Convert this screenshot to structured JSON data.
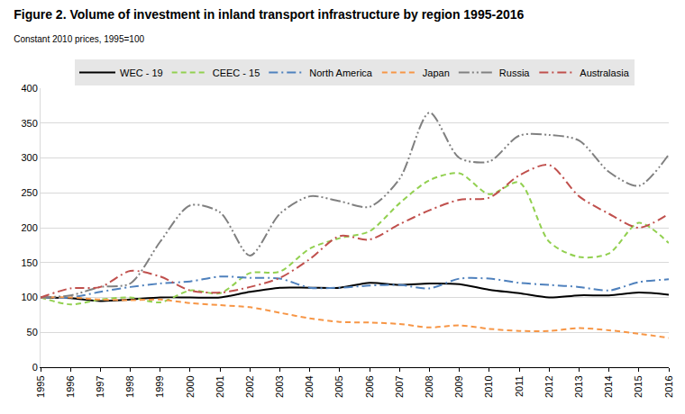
{
  "chart_data": {
    "type": "line",
    "title": "Figure 2. Volume of investment in inland transport infrastructure by region 1995-2016",
    "subtitle": "Constant 2010 prices, 1995=100",
    "categories": [
      "1995",
      "1996",
      "1997",
      "1998",
      "1999",
      "2000",
      "2001",
      "2002",
      "2003",
      "2004",
      "2005",
      "2006",
      "2007",
      "2008",
      "2009",
      "2010",
      "2011",
      "2012",
      "2013",
      "2014",
      "2015",
      "2016"
    ],
    "series": [
      {
        "name": "WEC - 19",
        "color": "#000000",
        "line_style": "solid",
        "values": [
          100,
          99,
          95,
          97,
          100,
          100,
          100,
          108,
          114,
          114,
          114,
          121,
          118,
          120,
          119,
          111,
          106,
          100,
          103,
          103,
          107,
          104
        ]
      },
      {
        "name": "CEEC - 15",
        "color": "#92d050",
        "line_style": "dash",
        "values": [
          100,
          90,
          97,
          100,
          93,
          110,
          106,
          135,
          137,
          170,
          185,
          195,
          235,
          268,
          278,
          248,
          265,
          180,
          158,
          163,
          207,
          178
        ]
      },
      {
        "name": "North America",
        "color": "#4f81bd",
        "line_style": "dashdot",
        "values": [
          100,
          100,
          108,
          115,
          120,
          123,
          130,
          128,
          127,
          114,
          114,
          117,
          118,
          113,
          127,
          127,
          121,
          118,
          115,
          110,
          122,
          126
        ]
      },
      {
        "name": "Japan",
        "color": "#f79646",
        "line_style": "dash",
        "values": [
          100,
          100,
          97,
          96,
          97,
          92,
          89,
          86,
          78,
          70,
          65,
          64,
          62,
          57,
          60,
          55,
          52,
          52,
          56,
          53,
          48,
          42
        ]
      },
      {
        "name": "Russia",
        "color": "#808080",
        "line_style": "dashdotdot",
        "values": [
          100,
          103,
          115,
          120,
          180,
          232,
          222,
          160,
          220,
          245,
          238,
          230,
          270,
          365,
          300,
          295,
          332,
          333,
          325,
          280,
          260,
          305
        ]
      },
      {
        "name": "Australasia",
        "color": "#c0504d",
        "line_style": "dashdot",
        "values": [
          100,
          113,
          115,
          138,
          130,
          110,
          107,
          115,
          128,
          155,
          188,
          183,
          205,
          225,
          240,
          243,
          275,
          290,
          245,
          220,
          200,
          220
        ]
      }
    ],
    "ylim": [
      0,
      400
    ],
    "yticks": [
      0,
      50,
      100,
      150,
      200,
      250,
      300,
      350,
      400
    ],
    "grid": true,
    "legend": "top"
  }
}
